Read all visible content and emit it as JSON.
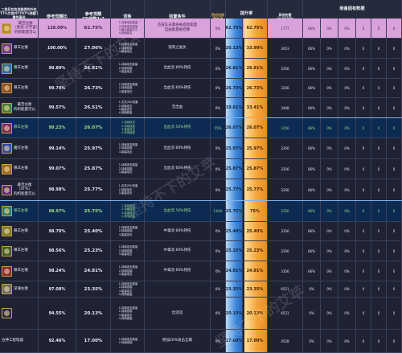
{
  "headers": {
    "col1_line1": "二觉后在各技能类的外在",
    "col1_line2": "TT%为觉并TT97%觉醒下装备本",
    "col1_line3": "属性最佳",
    "col2": "参考觉醒比",
    "col3_line1": "参考觉醒",
    "col3_line2": "CD倍数1:2",
    "col4": "词条",
    "col5": "前置条件",
    "col6": "百分比伤害加成",
    "col7": "提升率",
    "col7a": "同期期",
    "col7b": "秒伤",
    "col8": "其他伤害",
    "col8b": "(*1000倍)",
    "col9": "装备固有数据",
    "col9a": "暴强",
    "col9b": "特殊",
    "col9c": "百分比伤害",
    "col9d": "倍率增加",
    "col9e": "CD",
    "col9f": "减少",
    "col9g": "技能"
  },
  "rows": [
    {
      "name_lines": [
        "最苦左衡",
        "（绝技·大宇宙）",
        "的帜能量可以"
      ],
      "ratio": "128.09%",
      "cd": "62.75%",
      "entries": [
        "1.持续攻击能量",
        "2.持续攻击能量",
        "3.最大能量攻击",
        "4.其他能量"
      ],
      "precond_lines": [
        "造成队员素质被提高能量",
        "自由能量被结算"
      ],
      "pct": "0%",
      "rate1": "62.75%",
      "rate2": "62.75%",
      "dmg": "1777",
      "e1": "66%",
      "e2": "0%",
      "e3": "0%",
      "e4": "0",
      "e5": "0",
      "e6": "0"
    },
    {
      "name_lines": [
        "尊羊左衡"
      ],
      "ratio": "100.00%",
      "cd": "27.06%",
      "entries": [
        "1.持续攻击能量",
        "2.持续技能",
        "3.能量攻击"
      ],
      "precond_lines": [
        "锁刻之复仇"
      ],
      "pct": "0%",
      "rate1": "20.13%",
      "rate2": "33.99%",
      "dmg": "3453",
      "e1": "66%",
      "e2": "0%",
      "e3": "0%",
      "e4": "0",
      "e5": "0",
      "e6": "0"
    },
    {
      "name_lines": [
        "尊羊左衡"
      ],
      "ratio": "99.80%",
      "cd": "26.81%",
      "entries": [
        "1.持续攻击能量",
        "2.持续技能",
        "3.能量攻击"
      ],
      "precond_lines": [
        "出血流 60%持伤"
      ],
      "pct": "0%",
      "rate1": "26.81%",
      "rate2": "26.81%",
      "dmg": "3356",
      "e1": "66%",
      "e2": "0%",
      "e3": "0%",
      "e4": "0",
      "e5": "0",
      "e6": "0"
    },
    {
      "name_lines": [
        "尊羊左衡"
      ],
      "ratio": "99.74%",
      "cd": "26.73%",
      "entries": [
        "1.持续攻击能量",
        "2.持续技能",
        "3.能量攻击"
      ],
      "precond_lines": [
        "出血流 60%持伤"
      ],
      "pct": "0%",
      "rate1": "26.73%",
      "rate2": "26.73%",
      "dmg": "3356",
      "e1": "66%",
      "e2": "0%",
      "e3": "0%",
      "e4": "0",
      "e5": "0",
      "e6": "0"
    },
    {
      "name_lines": [
        "最苦左衡",
        "的帜能量可以"
      ],
      "ratio": "99.57%",
      "cd": "26.51%",
      "entries": [
        "1.灭灵(50)伤害",
        "2.持续攻击",
        "3.能量攻击",
        "4.其他能量"
      ],
      "precond_lines": [
        "无出血"
      ],
      "pct": "0%",
      "rate1": "19.61%",
      "rate2": "33.41%",
      "dmg": "3408",
      "e1": "66%",
      "e2": "0%",
      "e3": "0%",
      "e4": "0",
      "e5": "0",
      "e6": "0"
    },
    {
      "name_lines": [
        "尊羊左衡"
      ],
      "ratio": "99.23%",
      "cd": "26.07%",
      "entries": [
        "1.持续攻击",
        "2.持续技能",
        "3.能量攻击",
        "4.其他能量"
      ],
      "precond_lines": [
        "出血流 50%持伤"
      ],
      "pct": "55%",
      "rate1": "26.07%",
      "rate2": "26.07%",
      "dmg": "3356",
      "e1": "66%",
      "e2": "0%",
      "e3": "0%",
      "e4": "0",
      "e5": "0",
      "e6": "0"
    },
    {
      "name_lines": [
        "魔灭左衡"
      ],
      "ratio": "99.14%",
      "cd": "25.97%",
      "entries": [
        "1.持续攻击能量",
        "2.持续技能",
        "3.能量攻击"
      ],
      "precond_lines": [
        "出血流 60%持伤"
      ],
      "pct": "0%",
      "rate1": "25.97%",
      "rate2": "25.97%",
      "dmg": "3356",
      "e1": "66%",
      "e2": "0%",
      "e3": "0%",
      "e4": "0",
      "e5": "0",
      "e6": "0"
    },
    {
      "name_lines": [
        "尊羊左衡"
      ],
      "ratio": "99.07%",
      "cd": "25.87%",
      "entries": [
        "1.持续攻击能量",
        "2.持续技能",
        "3.能量攻击"
      ],
      "precond_lines": [
        "出血流 60%持伤"
      ],
      "pct": "0%",
      "rate1": "25.87%",
      "rate2": "25.87%",
      "dmg": "3356",
      "e1": "66%",
      "e2": "0%",
      "e3": "0%",
      "e4": "0",
      "e5": "0",
      "e6": "0"
    },
    {
      "name_lines": [
        "最苦左衡",
        "（4T%）",
        "的帜能量可以"
      ],
      "ratio": "98.98%",
      "cd": "25.77%",
      "entries": [
        "1.灭灵(50)伤害",
        "2.持续攻击",
        "3.能量攻击"
      ],
      "precond_lines": [
        ""
      ],
      "pct": "0%",
      "rate1": "25.77%",
      "rate2": "25.77%",
      "dmg": "3356",
      "e1": "66%",
      "e2": "0%",
      "e3": "0%",
      "e4": "0",
      "e5": "0",
      "e6": "0"
    },
    {
      "name_lines": [
        "尊羊左衡"
      ],
      "ratio": "98.97%",
      "cd": "25.75%",
      "entries": [
        "1.持续攻击",
        "2.持续技能",
        "3.能量攻击",
        "4.其他能量"
      ],
      "precond_lines": [
        "出血流 50%持伤"
      ],
      "pct": "110%",
      "rate1": "25.75%",
      "rate2": "75%",
      "dmg": "3356",
      "e1": "66%",
      "e2": "0%",
      "e3": "0%",
      "e4": "0",
      "e5": "0",
      "e6": "0"
    },
    {
      "name_lines": [
        "尊羊左衡"
      ],
      "ratio": "98.70%",
      "cd": "25.40%",
      "entries": [
        "1.持续攻击能量",
        "2.持续技能",
        "3.能量攻击"
      ],
      "precond_lines": [
        "中毒流 60%持伤"
      ],
      "pct": "0%",
      "rate1": "25.40%",
      "rate2": "25.40%",
      "dmg": "3356",
      "e1": "66%",
      "e2": "0%",
      "e3": "0%",
      "e4": "0",
      "e5": "0",
      "e6": "0"
    },
    {
      "name_lines": [
        "尊羊左衡"
      ],
      "ratio": "98.56%",
      "cd": "25.23%",
      "entries": [
        "1.持续攻击能量",
        "2.持续技能",
        "3.能量攻击"
      ],
      "precond_lines": [
        "中毒流 60%持伤"
      ],
      "pct": "0%",
      "rate1": "25.23%",
      "rate2": "25.23%",
      "dmg": "3356",
      "e1": "66%",
      "e2": "0%",
      "e3": "0%",
      "e4": "0",
      "e5": "0",
      "e6": "0"
    },
    {
      "name_lines": [
        "尊羊左衡"
      ],
      "ratio": "98.24%",
      "cd": "24.81%",
      "entries": [
        "1.持续攻击能量",
        "2.持续技能",
        "3.能量攻击"
      ],
      "precond_lines": [
        "中毒流 60%持伤"
      ],
      "pct": "0%",
      "rate1": "24.81%",
      "rate2": "24.81%",
      "dmg": "3356",
      "e1": "66%",
      "e2": "0%",
      "e3": "0%",
      "e4": "0",
      "e5": "0",
      "e6": "0"
    },
    {
      "name_lines": [
        "深渊左衡"
      ],
      "ratio": "97.08%",
      "cd": "23.35%",
      "entries": [
        "1.持续攻击能量",
        "2.持续技能",
        "3.能量攻击",
        "4.其他能量"
      ],
      "precond_lines": [
        ""
      ],
      "pct": "0%",
      "rate1": "23.35%",
      "rate2": "23.35%",
      "dmg": "6521",
      "e1": "0%",
      "e2": "0%",
      "e3": "0%",
      "e4": "0",
      "e5": "0",
      "e6": "0"
    },
    {
      "name_lines": [
        ""
      ],
      "ratio": "94.55%",
      "cd": "20.13%",
      "entries": [
        "1.持续攻击能量",
        "2.持续技能",
        "3.能量攻击",
        "4.其他能量"
      ],
      "precond_lines": [
        "出流流"
      ],
      "pct": "0%",
      "rate1": "20.13%",
      "rate2": "20.13%",
      "dmg": "6521",
      "e1": "0%",
      "e2": "0%",
      "e3": "0%",
      "e4": "0",
      "e5": "0",
      "e6": "0"
    },
    {
      "name_lines": [
        "古神工程暗器"
      ],
      "ratio": "92.46%",
      "cd": "17.00%",
      "entries": [
        "1.持续攻击能量",
        "2.持续技能"
      ],
      "precond_lines": [
        "附加20%攻击全属"
      ],
      "pct": "0%",
      "rate1": "17.00%",
      "rate2": "17.00%",
      "dmg": "4528",
      "e1": "0%",
      "e2": "0%",
      "e3": "0%",
      "e4": "0",
      "e5": "0",
      "e6": "0"
    }
  ],
  "watermark": "坚持不下的艾苹"
}
